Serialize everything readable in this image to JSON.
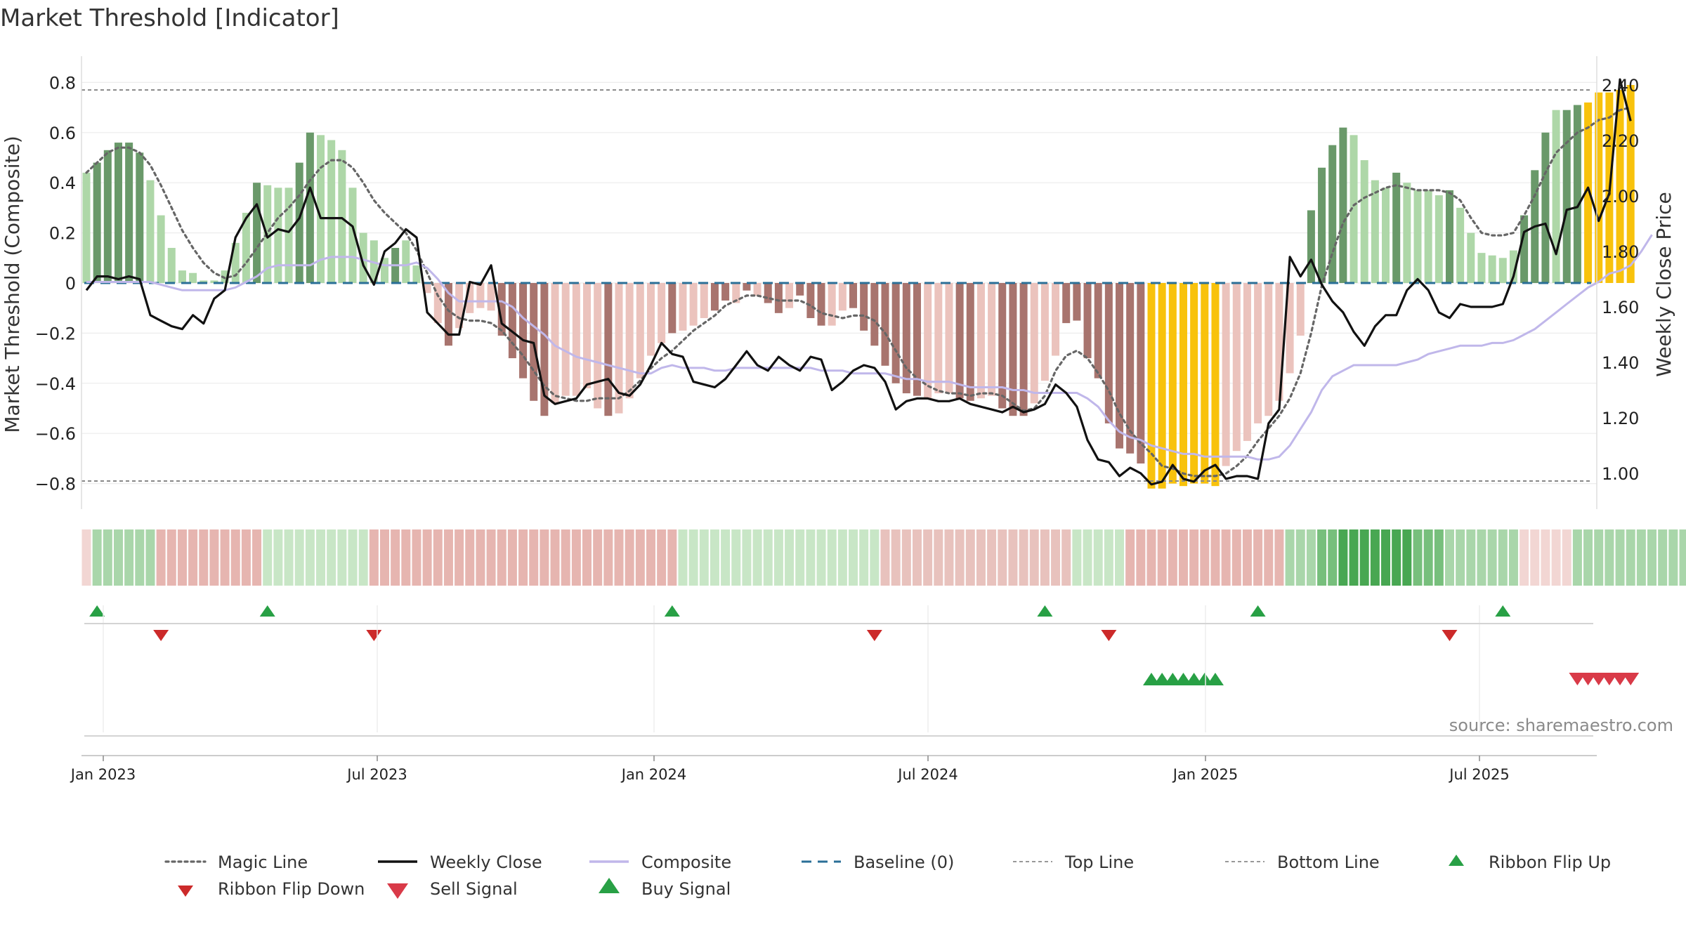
{
  "chart_data": {
    "type": "bar",
    "title": "Market Threshold [Indicator]",
    "ylabel_left": "Market Threshold (Composite)",
    "ylabel_right": "Weekly Close Price",
    "source": "source: sharemaestro.com",
    "ylim_left": [
      -0.9,
      0.9
    ],
    "ylim_right": [
      0.9,
      2.45
    ],
    "left_ticks": [
      0.8,
      0.6,
      0.4,
      0.2,
      0,
      -0.2,
      -0.4,
      -0.6,
      -0.8
    ],
    "left_tick_labels": [
      "0.8",
      "0.6",
      "0.4",
      "0.2",
      "0",
      "−0.2",
      "−0.4",
      "−0.6",
      "−0.8"
    ],
    "right_ticks": [
      2.4,
      2.2,
      2.0,
      1.8,
      1.6,
      1.4,
      1.2,
      1.0
    ],
    "right_tick_labels": [
      "2.40",
      "2.20",
      "2.00",
      "1.80",
      "1.60",
      "1.40",
      "1.20",
      "1.00"
    ],
    "x_date_labels": [
      "Jan 2023",
      "Jul 2023",
      "Jan 2024",
      "Jul 2024",
      "Jan 2025",
      "Jul 2025"
    ],
    "top_line": 0.77,
    "bottom_line": -0.79,
    "grid": true,
    "legend_position": "bottom",
    "colors": {
      "dark_green": "#6a996a",
      "light_green": "#aed7a8",
      "dark_red": "#a8746e",
      "light_red": "#ebc3bd",
      "gold": "#f8c20c",
      "magic": "#666666",
      "close": "#111111",
      "composite": "#c0b7ea",
      "baseline": "#2a6f97",
      "buy": "#28a045",
      "sell": "#d93a48",
      "flip_down": "#cc2a2a"
    },
    "composite_bars": [
      0.44,
      0.48,
      0.53,
      0.56,
      0.56,
      0.52,
      0.41,
      0.27,
      0.14,
      0.05,
      0.04,
      0.01,
      0.01,
      0.05,
      0.16,
      0.28,
      0.4,
      0.39,
      0.38,
      0.38,
      0.48,
      0.6,
      0.59,
      0.57,
      0.53,
      0.38,
      0.2,
      0.17,
      0.1,
      0.14,
      0.17,
      0.07,
      -0.04,
      -0.16,
      -0.25,
      -0.18,
      -0.12,
      -0.1,
      -0.11,
      -0.21,
      -0.3,
      -0.38,
      -0.47,
      -0.53,
      -0.48,
      -0.45,
      -0.45,
      -0.42,
      -0.5,
      -0.53,
      -0.52,
      -0.46,
      -0.38,
      -0.29,
      -0.24,
      -0.2,
      -0.19,
      -0.17,
      -0.14,
      -0.11,
      -0.07,
      -0.08,
      -0.03,
      -0.05,
      -0.08,
      -0.12,
      -0.1,
      -0.05,
      -0.14,
      -0.17,
      -0.17,
      -0.11,
      -0.1,
      -0.19,
      -0.25,
      -0.33,
      -0.4,
      -0.44,
      -0.45,
      -0.46,
      -0.44,
      -0.44,
      -0.46,
      -0.47,
      -0.46,
      -0.45,
      -0.5,
      -0.53,
      -0.53,
      -0.48,
      -0.39,
      -0.29,
      -0.16,
      -0.15,
      -0.3,
      -0.38,
      -0.56,
      -0.66,
      -0.68,
      -0.72,
      -0.82,
      -0.82,
      -0.8,
      -0.81,
      -0.8,
      -0.8,
      -0.81,
      -0.73,
      -0.67,
      -0.63,
      -0.56,
      -0.53,
      -0.47,
      -0.36,
      -0.21,
      0.29,
      0.46,
      0.55,
      0.62,
      0.59,
      0.49,
      0.41,
      0.38,
      0.44,
      0.4,
      0.37,
      0.37,
      0.35,
      0.37,
      0.3,
      0.2,
      0.12,
      0.11,
      0.1,
      0.13,
      0.27,
      0.45,
      0.6,
      0.69,
      0.69,
      0.71,
      0.72,
      0.76,
      0.76,
      0.77,
      0.79
    ],
    "bar_colors": [
      "L",
      "G",
      "G",
      "G",
      "G",
      "G",
      "L",
      "L",
      "L",
      "L",
      "L",
      "L",
      "L",
      "L",
      "L",
      "L",
      "G",
      "L",
      "L",
      "L",
      "G",
      "G",
      "L",
      "L",
      "L",
      "L",
      "L",
      "L",
      "L",
      "G",
      "L",
      "L",
      "l",
      "r",
      "R",
      "l",
      "l",
      "l",
      "l",
      "R",
      "R",
      "R",
      "R",
      "R",
      "l",
      "l",
      "l",
      "l",
      "l",
      "R",
      "l",
      "l",
      "l",
      "l",
      "l",
      "R",
      "l",
      "l",
      "l",
      "R",
      "R",
      "l",
      "R",
      "l",
      "R",
      "R",
      "l",
      "R",
      "R",
      "R",
      "l",
      "l",
      "R",
      "R",
      "R",
      "R",
      "R",
      "R",
      "R",
      "l",
      "l",
      "l",
      "R",
      "R",
      "l",
      "l",
      "R",
      "R",
      "R",
      "l",
      "l",
      "l",
      "R",
      "R",
      "R",
      "R",
      "R",
      "R",
      "R",
      "R",
      "Y",
      "Y",
      "Y",
      "Y",
      "Y",
      "Y",
      "Y",
      "l",
      "l",
      "l",
      "l",
      "l",
      "l",
      "l",
      "l",
      "G",
      "G",
      "G",
      "G",
      "L",
      "L",
      "L",
      "L",
      "G",
      "L",
      "L",
      "L",
      "L",
      "G",
      "L",
      "L",
      "L",
      "L",
      "L",
      "L",
      "G",
      "G",
      "G",
      "L",
      "G",
      "G",
      "Y",
      "Y",
      "Y",
      "Y",
      "Y"
    ],
    "magic_line": [
      0.44,
      0.48,
      0.52,
      0.54,
      0.54,
      0.52,
      0.47,
      0.39,
      0.3,
      0.21,
      0.14,
      0.08,
      0.04,
      0.02,
      0.03,
      0.08,
      0.14,
      0.2,
      0.26,
      0.3,
      0.35,
      0.41,
      0.46,
      0.49,
      0.49,
      0.46,
      0.4,
      0.33,
      0.28,
      0.24,
      0.2,
      0.13,
      0.04,
      -0.05,
      -0.11,
      -0.14,
      -0.15,
      -0.15,
      -0.16,
      -0.19,
      -0.24,
      -0.29,
      -0.35,
      -0.41,
      -0.45,
      -0.46,
      -0.47,
      -0.47,
      -0.46,
      -0.46,
      -0.46,
      -0.43,
      -0.39,
      -0.34,
      -0.3,
      -0.27,
      -0.23,
      -0.19,
      -0.16,
      -0.13,
      -0.09,
      -0.07,
      -0.05,
      -0.05,
      -0.06,
      -0.07,
      -0.07,
      -0.07,
      -0.09,
      -0.12,
      -0.13,
      -0.14,
      -0.13,
      -0.13,
      -0.15,
      -0.2,
      -0.27,
      -0.34,
      -0.38,
      -0.41,
      -0.43,
      -0.44,
      -0.44,
      -0.45,
      -0.44,
      -0.44,
      -0.45,
      -0.48,
      -0.51,
      -0.5,
      -0.45,
      -0.35,
      -0.29,
      -0.27,
      -0.3,
      -0.36,
      -0.43,
      -0.52,
      -0.59,
      -0.64,
      -0.68,
      -0.73,
      -0.74,
      -0.76,
      -0.77,
      -0.77,
      -0.77,
      -0.76,
      -0.73,
      -0.69,
      -0.63,
      -0.58,
      -0.53,
      -0.46,
      -0.36,
      -0.2,
      -0.01,
      0.12,
      0.24,
      0.31,
      0.34,
      0.36,
      0.38,
      0.39,
      0.38,
      0.37,
      0.37,
      0.37,
      0.36,
      0.33,
      0.26,
      0.2,
      0.19,
      0.19,
      0.2,
      0.27,
      0.35,
      0.44,
      0.52,
      0.56,
      0.6,
      0.62,
      0.65,
      0.66,
      0.69,
      0.7
    ],
    "weekly_close": [
      1.66,
      1.71,
      1.71,
      1.7,
      1.71,
      1.7,
      1.57,
      1.55,
      1.53,
      1.52,
      1.57,
      1.54,
      1.63,
      1.66,
      1.85,
      1.92,
      1.97,
      1.85,
      1.88,
      1.87,
      1.92,
      2.03,
      1.92,
      1.92,
      1.92,
      1.89,
      1.75,
      1.68,
      1.8,
      1.83,
      1.88,
      1.85,
      1.58,
      1.54,
      1.5,
      1.5,
      1.69,
      1.68,
      1.75,
      1.54,
      1.51,
      1.48,
      1.47,
      1.28,
      1.25,
      1.26,
      1.27,
      1.32,
      1.33,
      1.34,
      1.29,
      1.28,
      1.32,
      1.39,
      1.47,
      1.43,
      1.42,
      1.33,
      1.32,
      1.31,
      1.34,
      1.39,
      1.44,
      1.39,
      1.37,
      1.42,
      1.39,
      1.37,
      1.42,
      1.41,
      1.3,
      1.33,
      1.37,
      1.39,
      1.38,
      1.33,
      1.23,
      1.26,
      1.27,
      1.27,
      1.26,
      1.26,
      1.27,
      1.25,
      1.24,
      1.23,
      1.22,
      1.24,
      1.22,
      1.23,
      1.25,
      1.32,
      1.29,
      1.24,
      1.12,
      1.05,
      1.04,
      0.99,
      1.02,
      1.0,
      0.96,
      0.97,
      1.03,
      0.98,
      0.97,
      1.01,
      1.03,
      0.98,
      0.99,
      0.99,
      0.98,
      1.18,
      1.23,
      1.78,
      1.71,
      1.77,
      1.68,
      1.62,
      1.58,
      1.51,
      1.46,
      1.53,
      1.57,
      1.57,
      1.66,
      1.7,
      1.66,
      1.58,
      1.56,
      1.61,
      1.6,
      1.6,
      1.6,
      1.61,
      1.71,
      1.87,
      1.89,
      1.9,
      1.79,
      1.95,
      1.96,
      2.03,
      1.91,
      2.01,
      2.42,
      2.27
    ],
    "composite_line": [
      1.69,
      1.69,
      1.69,
      1.69,
      1.69,
      1.69,
      1.69,
      1.68,
      1.67,
      1.66,
      1.66,
      1.66,
      1.66,
      1.66,
      1.67,
      1.69,
      1.71,
      1.74,
      1.75,
      1.75,
      1.75,
      1.75,
      1.77,
      1.78,
      1.78,
      1.78,
      1.77,
      1.76,
      1.75,
      1.75,
      1.75,
      1.76,
      1.74,
      1.7,
      1.65,
      1.62,
      1.62,
      1.62,
      1.62,
      1.62,
      1.6,
      1.56,
      1.53,
      1.5,
      1.46,
      1.44,
      1.42,
      1.41,
      1.4,
      1.39,
      1.38,
      1.37,
      1.36,
      1.36,
      1.38,
      1.39,
      1.38,
      1.38,
      1.38,
      1.37,
      1.37,
      1.38,
      1.38,
      1.38,
      1.38,
      1.38,
      1.38,
      1.38,
      1.38,
      1.37,
      1.37,
      1.37,
      1.36,
      1.36,
      1.36,
      1.36,
      1.35,
      1.34,
      1.34,
      1.33,
      1.33,
      1.33,
      1.32,
      1.31,
      1.31,
      1.31,
      1.31,
      1.3,
      1.3,
      1.29,
      1.29,
      1.29,
      1.29,
      1.29,
      1.27,
      1.24,
      1.19,
      1.15,
      1.13,
      1.12,
      1.1,
      1.09,
      1.08,
      1.07,
      1.07,
      1.06,
      1.06,
      1.06,
      1.06,
      1.06,
      1.05,
      1.05,
      1.06,
      1.1,
      1.16,
      1.22,
      1.3,
      1.35,
      1.37,
      1.39,
      1.39,
      1.39,
      1.39,
      1.39,
      1.4,
      1.41,
      1.43,
      1.44,
      1.45,
      1.46,
      1.46,
      1.46,
      1.47,
      1.47,
      1.48,
      1.5,
      1.52,
      1.55,
      1.58,
      1.61,
      1.64,
      1.67,
      1.69,
      1.72,
      1.73,
      1.75,
      1.8,
      1.86
    ],
    "ribbon_colors": [
      "#f2d6d3",
      "#a9d6aa",
      "#a9d6aa",
      "#a9d6aa",
      "#a9d6aa",
      "#a9d6aa",
      "#a9d6aa",
      "#e6b5b0",
      "#e6b5b0",
      "#e6b5b0",
      "#e6b5b0",
      "#e6b5b0",
      "#e6b5b0",
      "#e6b5b0",
      "#e6b5b0",
      "#e6b5b0",
      "#e6b5b0",
      "#c8e6c6",
      "#c8e6c6",
      "#c8e6c6",
      "#c8e6c6",
      "#c8e6c6",
      "#c8e6c6",
      "#c8e6c6",
      "#c8e6c6",
      "#c8e6c6",
      "#c8e6c6",
      "#e6b5b0",
      "#e6b5b0",
      "#e6b5b0",
      "#e6b5b0",
      "#e6b5b0",
      "#e6b5b0",
      "#e6b5b0",
      "#e6b5b0",
      "#e6b5b0",
      "#e6b5b0",
      "#e6b5b0",
      "#e6b5b0",
      "#e6b5b0",
      "#e6b5b0",
      "#e6b5b0",
      "#e6b5b0",
      "#e6b5b0",
      "#e6b5b0",
      "#e6b5b0",
      "#e6b5b0",
      "#e6b5b0",
      "#e6b5b0",
      "#e6b5b0",
      "#e6b5b0",
      "#e6b5b0",
      "#e6b5b0",
      "#e6b5b0",
      "#e6b5b0",
      "#e6b5b0",
      "#c8e6c6",
      "#c8e6c6",
      "#c8e6c6",
      "#c8e6c6",
      "#c8e6c6",
      "#c8e6c6",
      "#c8e6c6",
      "#c8e6c6",
      "#c8e6c6",
      "#c8e6c6",
      "#c8e6c6",
      "#c8e6c6",
      "#c8e6c6",
      "#c8e6c6",
      "#c8e6c6",
      "#c8e6c6",
      "#c8e6c6",
      "#c8e6c6",
      "#c8e6c6",
      "#e8c2bd",
      "#e8c2bd",
      "#e8c2bd",
      "#e8c2bd",
      "#e8c2bd",
      "#e8c2bd",
      "#e8c2bd",
      "#e8c2bd",
      "#e8c2bd",
      "#e8c2bd",
      "#e8c2bd",
      "#e8c2bd",
      "#e8c2bd",
      "#e8c2bd",
      "#e8c2bd",
      "#e8c2bd",
      "#e8c2bd",
      "#e8c2bd",
      "#c8e6c6",
      "#c8e6c6",
      "#c8e6c6",
      "#c8e6c6",
      "#c8e6c6",
      "#e6b5b0",
      "#e6b5b0",
      "#e6b5b0",
      "#e6b5b0",
      "#e6b5b0",
      "#e6b5b0",
      "#e6b5b0",
      "#e6b5b0",
      "#e6b5b0",
      "#e6b5b0",
      "#e6b5b0",
      "#e6b5b0",
      "#e6b5b0",
      "#e6b5b0",
      "#e6b5b0",
      "#a9d6aa",
      "#a9d6aa",
      "#a9d6aa",
      "#77bf7c",
      "#77bf7c",
      "#48a752",
      "#48a752",
      "#48a752",
      "#48a752",
      "#48a752",
      "#48a752",
      "#48a752",
      "#77bf7c",
      "#77bf7c",
      "#77bf7c",
      "#a9d6aa",
      "#a9d6aa",
      "#a9d6aa",
      "#a9d6aa",
      "#a9d6aa",
      "#a9d6aa",
      "#a9d6aa",
      "#f2d6d3",
      "#f2d6d3",
      "#f2d6d3",
      "#f2d6d3",
      "#f2d6d3",
      "#a9d6aa",
      "#a9d6aa",
      "#a9d6aa",
      "#a9d6aa",
      "#a9d6aa",
      "#a9d6aa",
      "#a9d6aa",
      "#a9d6aa",
      "#a9d6aa",
      "#a9d6aa",
      "#a9d6aa"
    ],
    "ribbon_flip_up_weeks": [
      1,
      17,
      55,
      90,
      110,
      133
    ],
    "ribbon_flip_down_weeks": [
      7,
      27,
      74,
      96,
      128
    ],
    "buy_signal_weeks": [
      100,
      101,
      102,
      103,
      104,
      105,
      106
    ],
    "sell_signal_weeks": [
      140,
      141,
      142,
      143,
      144,
      145
    ],
    "legend": [
      {
        "label": "Magic Line",
        "kind": "dotted",
        "color": "#666666"
      },
      {
        "label": "Weekly Close",
        "kind": "solid",
        "color": "#111111"
      },
      {
        "label": "Composite",
        "kind": "solid",
        "color": "#c0b7ea"
      },
      {
        "label": "Baseline (0)",
        "kind": "dashed",
        "color": "#2a6f97"
      },
      {
        "label": "Top Line",
        "kind": "thin-dotted",
        "color": "#999999"
      },
      {
        "label": "Bottom Line",
        "kind": "thin-dotted",
        "color": "#999999"
      },
      {
        "label": "Ribbon Flip Up",
        "kind": "tri-up-small",
        "color": "#28a045"
      },
      {
        "label": "Ribbon Flip Down",
        "kind": "tri-down-small",
        "color": "#cc2a2a"
      },
      {
        "label": "Sell Signal",
        "kind": "tri-down",
        "color": "#d93a48"
      },
      {
        "label": "Buy Signal",
        "kind": "tri-up",
        "color": "#28a045"
      }
    ]
  }
}
